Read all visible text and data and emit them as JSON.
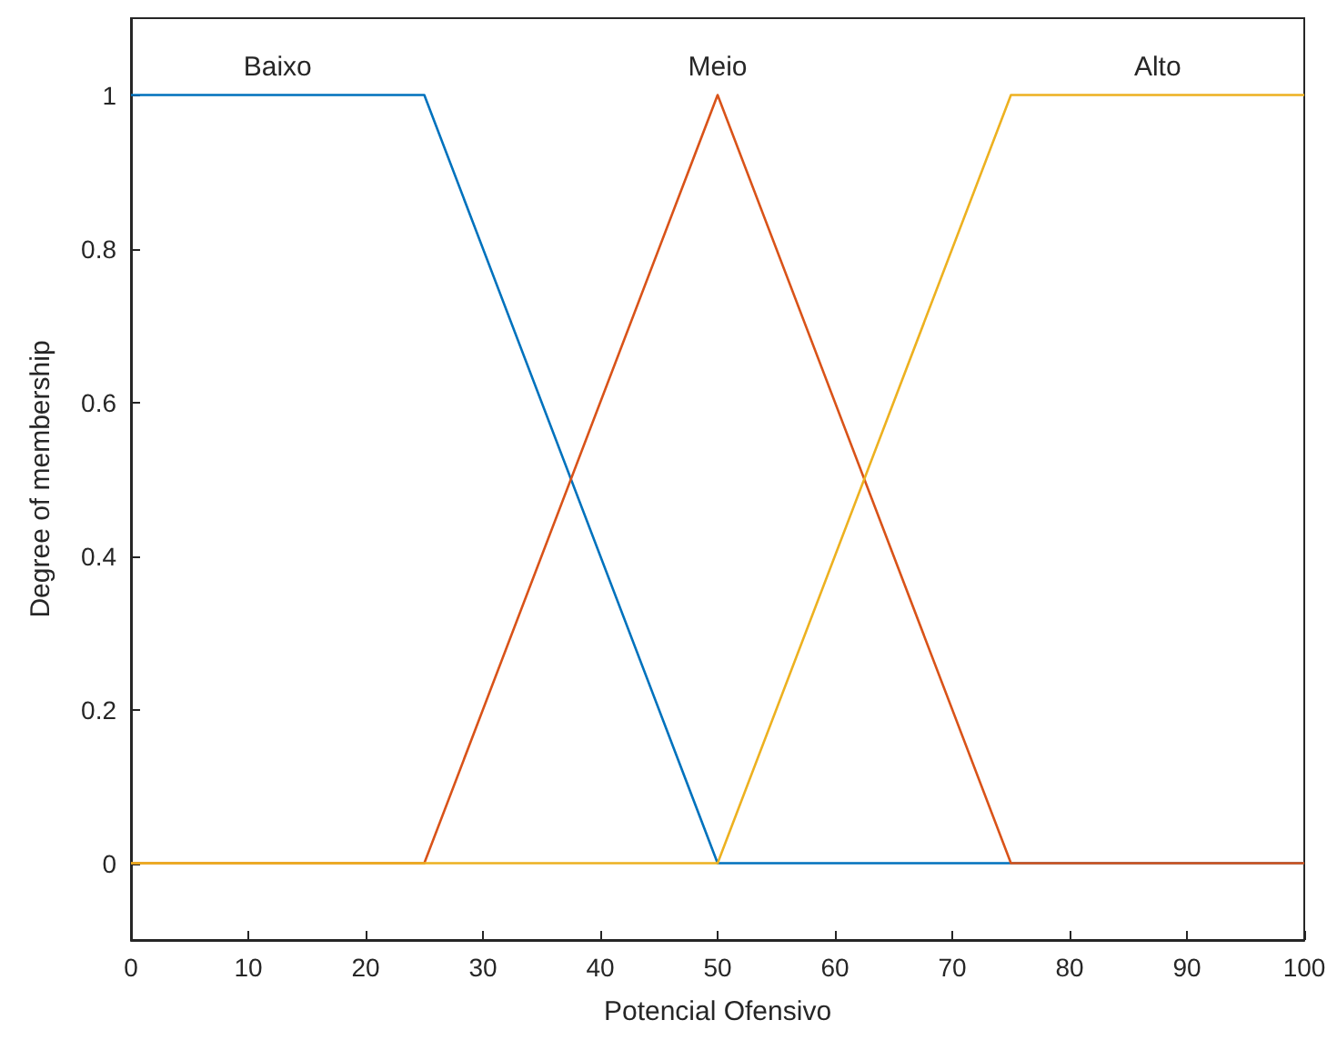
{
  "chart_data": {
    "type": "line",
    "xlabel": "Potencial Ofensivo",
    "ylabel": "Degree of membership",
    "xlim": [
      0,
      100
    ],
    "xticks": [
      0,
      10,
      20,
      30,
      40,
      50,
      60,
      70,
      80,
      90,
      100
    ],
    "ylim": [
      -0.1,
      1.1
    ],
    "yticks": [
      0,
      0.2,
      0.4,
      0.6,
      0.8,
      1
    ],
    "grid": false,
    "legend": false,
    "marker": "none",
    "line_style": "solid",
    "series": [
      {
        "name": "Baixo",
        "color": "#0072bd",
        "x": [
          0,
          25,
          50,
          100
        ],
        "values": [
          1,
          1,
          0,
          0
        ]
      },
      {
        "name": "Meio",
        "color": "#d95319",
        "x": [
          0,
          25,
          50,
          75,
          100
        ],
        "values": [
          0,
          0,
          1,
          0,
          0
        ]
      },
      {
        "name": "Alto",
        "color": "#edb120",
        "x": [
          0,
          50,
          75,
          100
        ],
        "values": [
          0,
          0,
          1,
          1
        ]
      }
    ]
  }
}
